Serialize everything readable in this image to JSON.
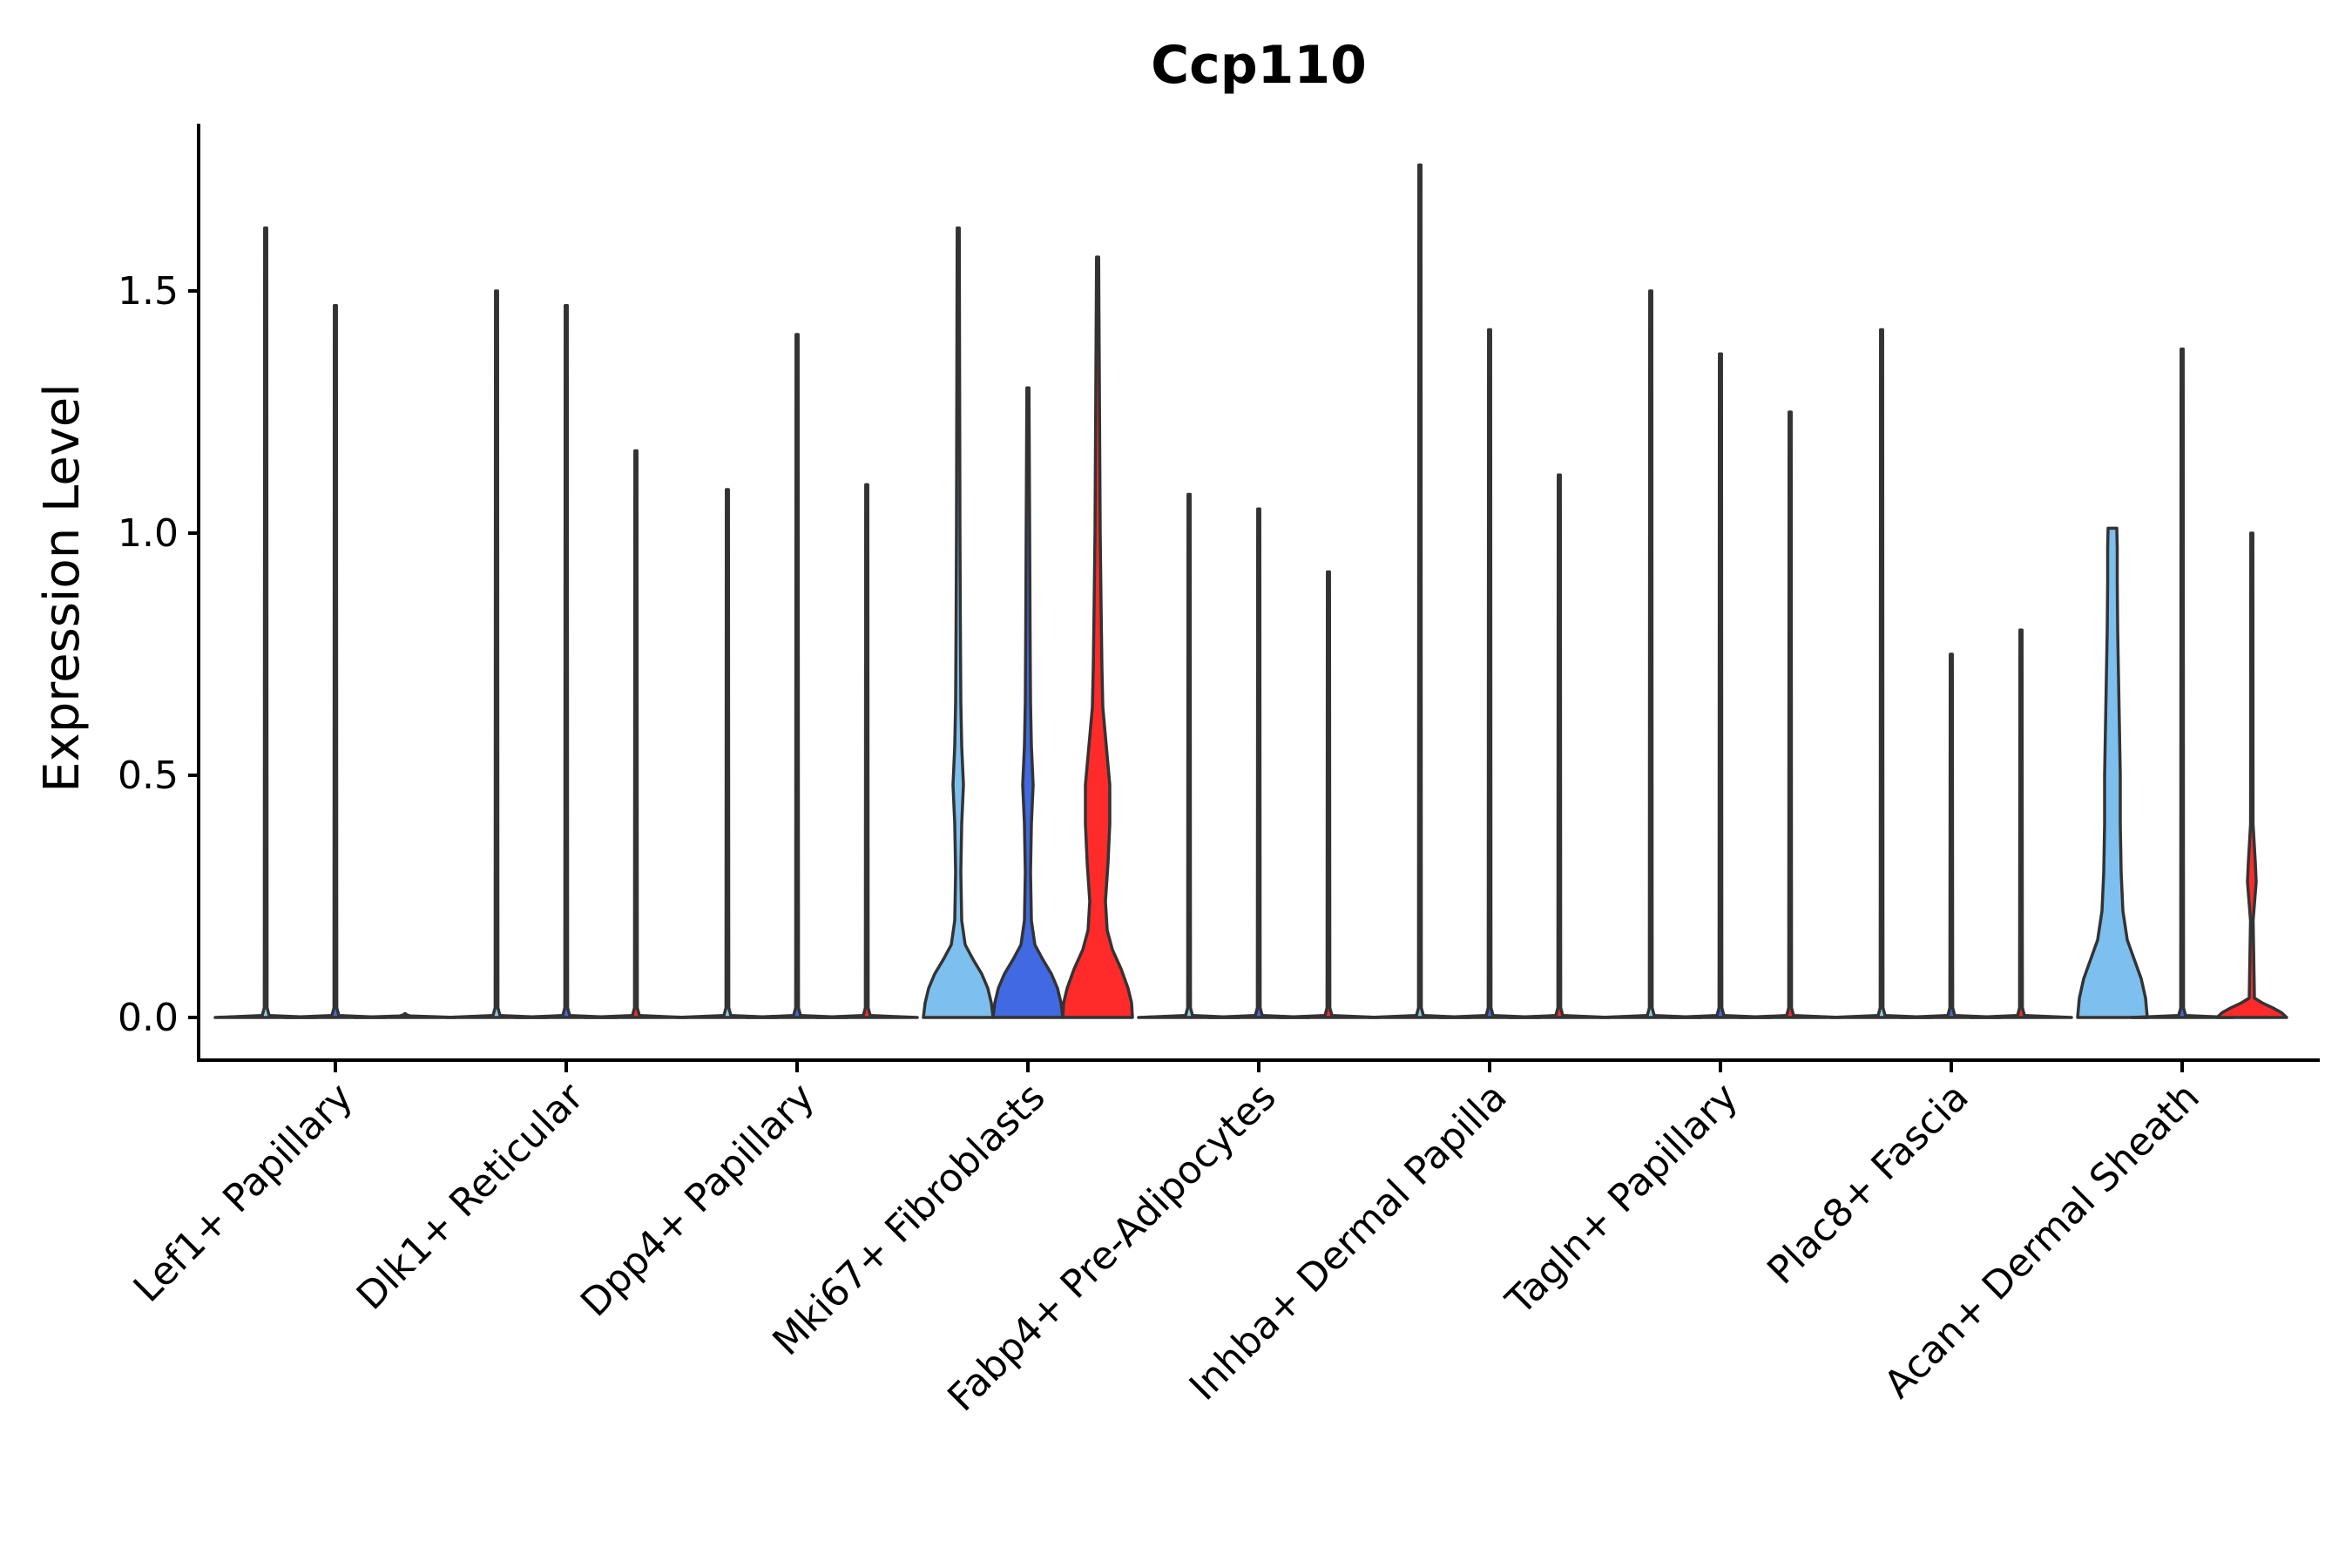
{
  "chart_data": {
    "type": "violin",
    "title": "Ccp110",
    "xlabel": "",
    "ylabel": "Expression Level",
    "ylim": [
      -0.09,
      1.85
    ],
    "yticks": [
      0.0,
      0.5,
      1.0,
      1.5
    ],
    "ytick_labels": [
      "0.0",
      "0.5",
      "1.0",
      "1.5"
    ],
    "grid": false,
    "legend": "none",
    "categories": [
      "Lef1+ Papillary",
      "Dlk1+ Reticular",
      "Dpp4+ Papillary",
      "Mki67+ Fibroblasts",
      "Fabp4+ Pre-Adipocytes",
      "Inhba+ Dermal Papilla",
      "Tagln+ Papillary",
      "Plac8+ Fascia",
      "Acan+ Dermal Sheath"
    ],
    "groups": [
      {
        "category": "Lef1+ Papillary",
        "violins": [
          {
            "color": "#87CEEB",
            "max": 1.63,
            "median": 0.0,
            "shape": "spike"
          },
          {
            "color": "#4169E1",
            "max": 1.47,
            "median": 0.0,
            "shape": "spike"
          },
          {
            "color": "#FF2A2A",
            "max": 0.0,
            "median": 0.0,
            "shape": "flat"
          }
        ]
      },
      {
        "category": "Dlk1+ Reticular",
        "violins": [
          {
            "color": "#87CEEB",
            "max": 1.5,
            "median": 0.0,
            "shape": "spike"
          },
          {
            "color": "#4169E1",
            "max": 1.47,
            "median": 0.0,
            "shape": "spike"
          },
          {
            "color": "#FF2A2A",
            "max": 1.17,
            "median": 0.0,
            "shape": "spike"
          }
        ]
      },
      {
        "category": "Dpp4+ Papillary",
        "violins": [
          {
            "color": "#87CEEB",
            "max": 1.09,
            "median": 0.0,
            "shape": "spike"
          },
          {
            "color": "#4169E1",
            "max": 1.41,
            "median": 0.0,
            "shape": "spike"
          },
          {
            "color": "#FF2A2A",
            "max": 1.1,
            "median": 0.0,
            "shape": "spike"
          }
        ]
      },
      {
        "category": "Mki67+ Fibroblasts",
        "violins": [
          {
            "color": "#7DBFEE",
            "max": 1.63,
            "median": 0.0,
            "shape": "wide"
          },
          {
            "color": "#4169E1",
            "max": 1.3,
            "median": 0.0,
            "shape": "wide"
          },
          {
            "color": "#FF2A2A",
            "max": 1.57,
            "median": 0.0,
            "shape": "wide-red"
          }
        ]
      },
      {
        "category": "Fabp4+ Pre-Adipocytes",
        "violins": [
          {
            "color": "#87CEEB",
            "max": 1.08,
            "median": 0.0,
            "shape": "spike"
          },
          {
            "color": "#4169E1",
            "max": 1.05,
            "median": 0.0,
            "shape": "spike"
          },
          {
            "color": "#FF2A2A",
            "max": 0.92,
            "median": 0.0,
            "shape": "spike"
          }
        ]
      },
      {
        "category": "Inhba+ Dermal Papilla",
        "violins": [
          {
            "color": "#87CEEB",
            "max": 1.76,
            "median": 0.0,
            "shape": "spike"
          },
          {
            "color": "#4169E1",
            "max": 1.42,
            "median": 0.0,
            "shape": "spike"
          },
          {
            "color": "#FF2A2A",
            "max": 1.12,
            "median": 0.0,
            "shape": "spike"
          }
        ]
      },
      {
        "category": "Tagln+ Papillary",
        "violins": [
          {
            "color": "#87CEEB",
            "max": 1.5,
            "median": 0.0,
            "shape": "spike"
          },
          {
            "color": "#4169E1",
            "max": 1.37,
            "median": 0.0,
            "shape": "spike"
          },
          {
            "color": "#FF2A2A",
            "max": 1.25,
            "median": 0.0,
            "shape": "spike"
          }
        ]
      },
      {
        "category": "Plac8+ Fascia",
        "violins": [
          {
            "color": "#87CEEB",
            "max": 1.42,
            "median": 0.0,
            "shape": "spike"
          },
          {
            "color": "#4169E1",
            "max": 0.75,
            "median": 0.0,
            "shape": "spike"
          },
          {
            "color": "#FF2A2A",
            "max": 0.8,
            "median": 0.0,
            "shape": "spike"
          }
        ]
      },
      {
        "category": "Acan+ Dermal Sheath",
        "violins": [
          {
            "color": "#7DBFEE",
            "max": 1.01,
            "median": 0.0,
            "shape": "wide-acan"
          },
          {
            "color": "#4169E1",
            "max": 1.38,
            "median": 0.0,
            "shape": "spike"
          },
          {
            "color": "#FF2A2A",
            "max": 1.0,
            "median": 0.0,
            "shape": "small-red"
          }
        ]
      }
    ]
  }
}
